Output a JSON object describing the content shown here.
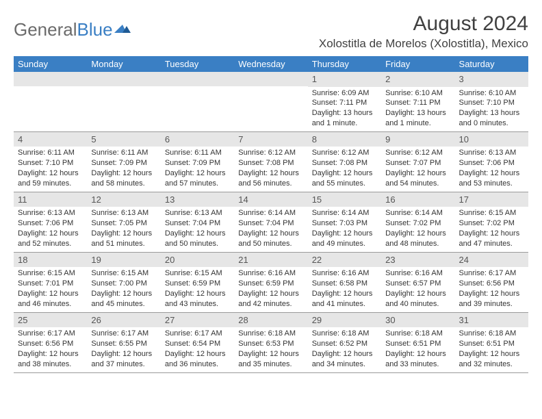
{
  "brand": {
    "part1": "General",
    "part2": "Blue"
  },
  "title": "August 2024",
  "location": "Xolostitla de Morelos (Xolostitla), Mexico",
  "colors": {
    "header_bg": "#3a7fc4",
    "header_text": "#ffffff",
    "daynum_bg": "#e6e6e6",
    "text": "#333333",
    "border": "#9a9a9a",
    "logo_gray": "#6b6b6b",
    "logo_blue": "#3a7fc4"
  },
  "day_labels": [
    "Sunday",
    "Monday",
    "Tuesday",
    "Wednesday",
    "Thursday",
    "Friday",
    "Saturday"
  ],
  "weeks": [
    [
      null,
      null,
      null,
      null,
      {
        "n": "1",
        "sr": "6:09 AM",
        "ss": "7:11 PM",
        "dl": "13 hours and 1 minute."
      },
      {
        "n": "2",
        "sr": "6:10 AM",
        "ss": "7:11 PM",
        "dl": "13 hours and 1 minute."
      },
      {
        "n": "3",
        "sr": "6:10 AM",
        "ss": "7:10 PM",
        "dl": "13 hours and 0 minutes."
      }
    ],
    [
      {
        "n": "4",
        "sr": "6:11 AM",
        "ss": "7:10 PM",
        "dl": "12 hours and 59 minutes."
      },
      {
        "n": "5",
        "sr": "6:11 AM",
        "ss": "7:09 PM",
        "dl": "12 hours and 58 minutes."
      },
      {
        "n": "6",
        "sr": "6:11 AM",
        "ss": "7:09 PM",
        "dl": "12 hours and 57 minutes."
      },
      {
        "n": "7",
        "sr": "6:12 AM",
        "ss": "7:08 PM",
        "dl": "12 hours and 56 minutes."
      },
      {
        "n": "8",
        "sr": "6:12 AM",
        "ss": "7:08 PM",
        "dl": "12 hours and 55 minutes."
      },
      {
        "n": "9",
        "sr": "6:12 AM",
        "ss": "7:07 PM",
        "dl": "12 hours and 54 minutes."
      },
      {
        "n": "10",
        "sr": "6:13 AM",
        "ss": "7:06 PM",
        "dl": "12 hours and 53 minutes."
      }
    ],
    [
      {
        "n": "11",
        "sr": "6:13 AM",
        "ss": "7:06 PM",
        "dl": "12 hours and 52 minutes."
      },
      {
        "n": "12",
        "sr": "6:13 AM",
        "ss": "7:05 PM",
        "dl": "12 hours and 51 minutes."
      },
      {
        "n": "13",
        "sr": "6:13 AM",
        "ss": "7:04 PM",
        "dl": "12 hours and 50 minutes."
      },
      {
        "n": "14",
        "sr": "6:14 AM",
        "ss": "7:04 PM",
        "dl": "12 hours and 50 minutes."
      },
      {
        "n": "15",
        "sr": "6:14 AM",
        "ss": "7:03 PM",
        "dl": "12 hours and 49 minutes."
      },
      {
        "n": "16",
        "sr": "6:14 AM",
        "ss": "7:02 PM",
        "dl": "12 hours and 48 minutes."
      },
      {
        "n": "17",
        "sr": "6:15 AM",
        "ss": "7:02 PM",
        "dl": "12 hours and 47 minutes."
      }
    ],
    [
      {
        "n": "18",
        "sr": "6:15 AM",
        "ss": "7:01 PM",
        "dl": "12 hours and 46 minutes."
      },
      {
        "n": "19",
        "sr": "6:15 AM",
        "ss": "7:00 PM",
        "dl": "12 hours and 45 minutes."
      },
      {
        "n": "20",
        "sr": "6:15 AM",
        "ss": "6:59 PM",
        "dl": "12 hours and 43 minutes."
      },
      {
        "n": "21",
        "sr": "6:16 AM",
        "ss": "6:59 PM",
        "dl": "12 hours and 42 minutes."
      },
      {
        "n": "22",
        "sr": "6:16 AM",
        "ss": "6:58 PM",
        "dl": "12 hours and 41 minutes."
      },
      {
        "n": "23",
        "sr": "6:16 AM",
        "ss": "6:57 PM",
        "dl": "12 hours and 40 minutes."
      },
      {
        "n": "24",
        "sr": "6:17 AM",
        "ss": "6:56 PM",
        "dl": "12 hours and 39 minutes."
      }
    ],
    [
      {
        "n": "25",
        "sr": "6:17 AM",
        "ss": "6:56 PM",
        "dl": "12 hours and 38 minutes."
      },
      {
        "n": "26",
        "sr": "6:17 AM",
        "ss": "6:55 PM",
        "dl": "12 hours and 37 minutes."
      },
      {
        "n": "27",
        "sr": "6:17 AM",
        "ss": "6:54 PM",
        "dl": "12 hours and 36 minutes."
      },
      {
        "n": "28",
        "sr": "6:18 AM",
        "ss": "6:53 PM",
        "dl": "12 hours and 35 minutes."
      },
      {
        "n": "29",
        "sr": "6:18 AM",
        "ss": "6:52 PM",
        "dl": "12 hours and 34 minutes."
      },
      {
        "n": "30",
        "sr": "6:18 AM",
        "ss": "6:51 PM",
        "dl": "12 hours and 33 minutes."
      },
      {
        "n": "31",
        "sr": "6:18 AM",
        "ss": "6:51 PM",
        "dl": "12 hours and 32 minutes."
      }
    ]
  ],
  "labels": {
    "sunrise": "Sunrise:",
    "sunset": "Sunset:",
    "daylight": "Daylight:"
  }
}
